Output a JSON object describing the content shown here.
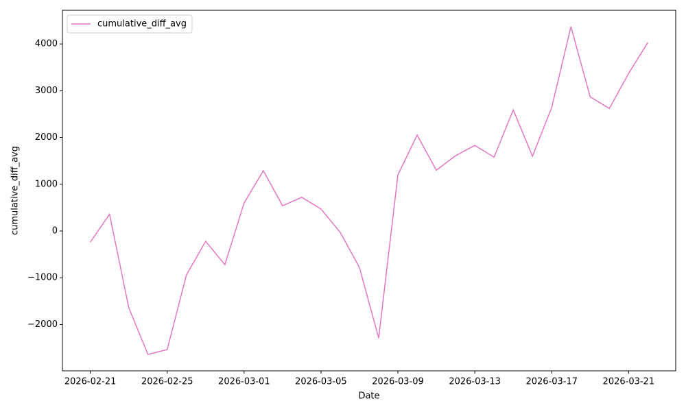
{
  "chart_data": {
    "type": "line",
    "xlabel": "Date",
    "ylabel": "cumulative_diff_avg",
    "x": [
      "2026-02-21",
      "2026-02-22",
      "2026-02-23",
      "2026-02-24",
      "2026-02-25",
      "2026-02-26",
      "2026-02-27",
      "2026-02-28",
      "2026-03-01",
      "2026-03-02",
      "2026-03-03",
      "2026-03-04",
      "2026-03-05",
      "2026-03-06",
      "2026-03-07",
      "2026-03-08",
      "2026-03-09",
      "2026-03-10",
      "2026-03-11",
      "2026-03-12",
      "2026-03-13",
      "2026-03-14",
      "2026-03-15",
      "2026-03-16",
      "2026-03-17",
      "2026-03-18",
      "2026-03-19",
      "2026-03-20",
      "2026-03-21",
      "2026-03-22"
    ],
    "series": [
      {
        "name": "cumulative_diff_avg",
        "color": "#e377c2",
        "values": [
          -240,
          360,
          -1640,
          -2640,
          -2535,
          -940,
          -220,
          -720,
          600,
          1290,
          540,
          720,
          470,
          -30,
          -780,
          -2290,
          1200,
          2050,
          1300,
          1610,
          1830,
          1580,
          2590,
          1600,
          2640,
          4370,
          2870,
          2620,
          3370,
          4030
        ]
      }
    ],
    "xlim": [
      "2026-02-19T13:12",
      "2026-03-23T10:48"
    ],
    "xticks": [
      "2026-02-21",
      "2026-02-25",
      "2026-03-01",
      "2026-03-05",
      "2026-03-09",
      "2026-03-13",
      "2026-03-17",
      "2026-03-21"
    ],
    "ylim": [
      -2990,
      4720
    ],
    "yticks": [
      {
        "value": -2000,
        "label": "−2000"
      },
      {
        "value": -1000,
        "label": "−1000"
      },
      0,
      1000,
      2000,
      3000,
      4000
    ],
    "legend": "upper left",
    "grid": false
  }
}
